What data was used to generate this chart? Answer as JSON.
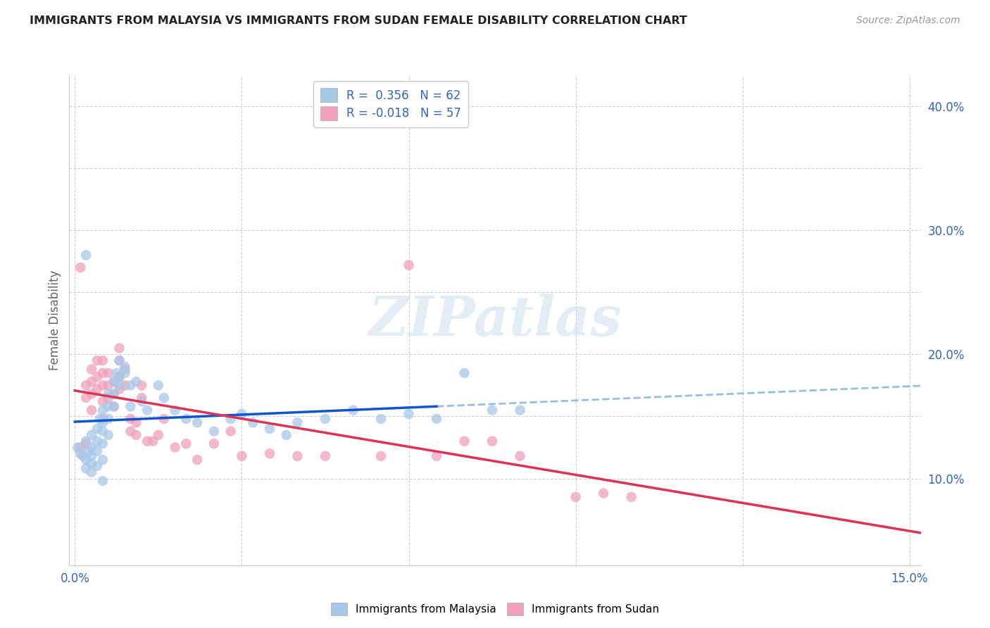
{
  "title": "IMMIGRANTS FROM MALAYSIA VS IMMIGRANTS FROM SUDAN FEMALE DISABILITY CORRELATION CHART",
  "source": "Source: ZipAtlas.com",
  "ylabel": "Female Disability",
  "xlim": [
    -0.001,
    0.152
  ],
  "ylim": [
    0.03,
    0.425
  ],
  "xticks": [
    0.0,
    0.03,
    0.06,
    0.09,
    0.12,
    0.15
  ],
  "yticks": [
    0.1,
    0.15,
    0.2,
    0.25,
    0.3,
    0.35,
    0.4
  ],
  "watermark": "ZIPatlas",
  "malaysia_color": "#a8c8e8",
  "sudan_color": "#f0a0b8",
  "malaysia_line_color": "#1155cc",
  "sudan_line_color": "#dd3355",
  "dashed_line_color": "#90b8d8",
  "malaysia_R": 0.356,
  "malaysia_N": 62,
  "sudan_R": -0.018,
  "sudan_N": 57,
  "malaysia_x": [
    0.0005,
    0.001,
    0.0015,
    0.002,
    0.002,
    0.002,
    0.0025,
    0.003,
    0.003,
    0.003,
    0.003,
    0.003,
    0.004,
    0.004,
    0.004,
    0.004,
    0.0045,
    0.005,
    0.005,
    0.005,
    0.005,
    0.005,
    0.005,
    0.006,
    0.006,
    0.006,
    0.006,
    0.007,
    0.007,
    0.007,
    0.0075,
    0.008,
    0.008,
    0.008,
    0.009,
    0.009,
    0.01,
    0.01,
    0.011,
    0.012,
    0.013,
    0.015,
    0.016,
    0.018,
    0.02,
    0.022,
    0.025,
    0.028,
    0.03,
    0.032,
    0.035,
    0.038,
    0.04,
    0.045,
    0.05,
    0.055,
    0.06,
    0.065,
    0.07,
    0.075,
    0.08,
    0.002
  ],
  "malaysia_y": [
    0.125,
    0.12,
    0.118,
    0.13,
    0.115,
    0.108,
    0.122,
    0.135,
    0.125,
    0.118,
    0.112,
    0.105,
    0.14,
    0.13,
    0.122,
    0.11,
    0.148,
    0.155,
    0.145,
    0.138,
    0.128,
    0.115,
    0.098,
    0.168,
    0.158,
    0.148,
    0.135,
    0.178,
    0.168,
    0.158,
    0.185,
    0.195,
    0.182,
    0.175,
    0.19,
    0.185,
    0.175,
    0.158,
    0.178,
    0.162,
    0.155,
    0.175,
    0.165,
    0.155,
    0.148,
    0.145,
    0.138,
    0.148,
    0.152,
    0.145,
    0.14,
    0.135,
    0.145,
    0.148,
    0.155,
    0.148,
    0.152,
    0.148,
    0.185,
    0.155,
    0.155,
    0.28
  ],
  "sudan_x": [
    0.001,
    0.001,
    0.002,
    0.002,
    0.002,
    0.003,
    0.003,
    0.003,
    0.003,
    0.004,
    0.004,
    0.004,
    0.005,
    0.005,
    0.005,
    0.005,
    0.005,
    0.006,
    0.006,
    0.006,
    0.007,
    0.007,
    0.007,
    0.008,
    0.008,
    0.008,
    0.008,
    0.009,
    0.009,
    0.01,
    0.01,
    0.011,
    0.011,
    0.012,
    0.012,
    0.013,
    0.014,
    0.015,
    0.016,
    0.018,
    0.02,
    0.022,
    0.025,
    0.028,
    0.03,
    0.035,
    0.04,
    0.045,
    0.055,
    0.06,
    0.065,
    0.07,
    0.075,
    0.08,
    0.09,
    0.095,
    0.1
  ],
  "sudan_y": [
    0.27,
    0.125,
    0.175,
    0.165,
    0.128,
    0.188,
    0.178,
    0.168,
    0.155,
    0.195,
    0.182,
    0.172,
    0.195,
    0.185,
    0.175,
    0.162,
    0.148,
    0.185,
    0.175,
    0.165,
    0.178,
    0.168,
    0.158,
    0.205,
    0.195,
    0.182,
    0.172,
    0.188,
    0.175,
    0.148,
    0.138,
    0.145,
    0.135,
    0.175,
    0.165,
    0.13,
    0.13,
    0.135,
    0.148,
    0.125,
    0.128,
    0.115,
    0.128,
    0.138,
    0.118,
    0.12,
    0.118,
    0.118,
    0.118,
    0.272,
    0.118,
    0.13,
    0.13,
    0.118,
    0.085,
    0.088,
    0.085
  ]
}
